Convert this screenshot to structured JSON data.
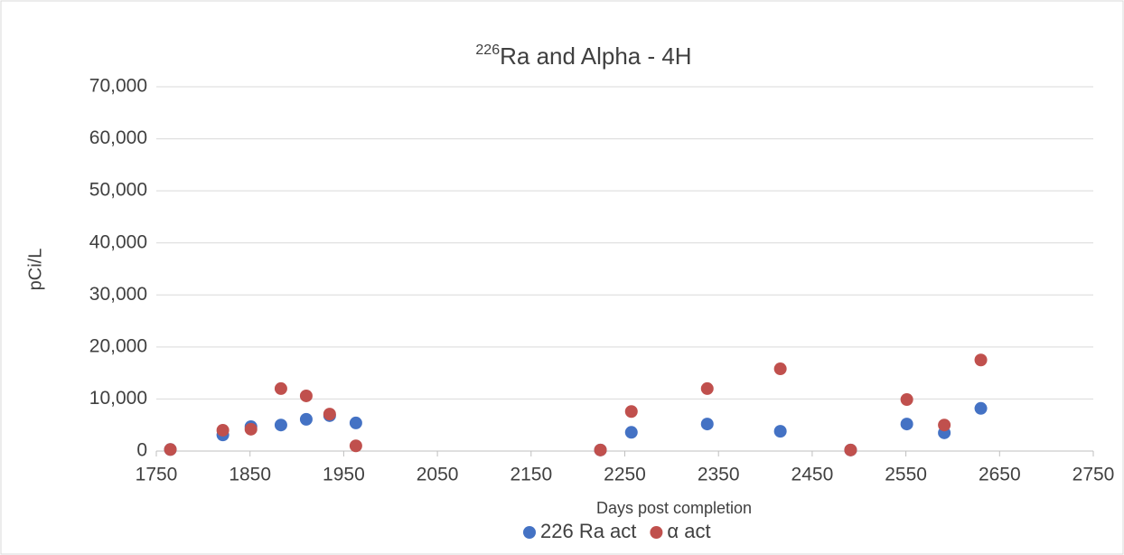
{
  "chart_data": {
    "type": "scatter",
    "title_superscript": "226",
    "title": "Ra and Alpha - 4H",
    "x_label": "Days post completion",
    "y_label": "pCi/L",
    "x": [
      1765,
      1821,
      1851,
      1883,
      1910,
      1935,
      1963,
      2224,
      2257,
      2338,
      2416,
      2491,
      2551,
      2591,
      2630
    ],
    "series": [
      {
        "name": "226 Ra act",
        "color": "#4472c4",
        "values": [
          300,
          3100,
          4700,
          5000,
          6100,
          6800,
          5400,
          200,
          3600,
          5200,
          3800,
          200,
          5200,
          3500,
          8200
        ]
      },
      {
        "name": "α act",
        "color": "#c0504d",
        "values": [
          300,
          4000,
          4200,
          12000,
          10600,
          7100,
          1000,
          200,
          7600,
          12000,
          15800,
          200,
          9900,
          5000,
          17500
        ]
      }
    ],
    "xlim": [
      1750,
      2750
    ],
    "xticks": [
      1750,
      1850,
      1950,
      2050,
      2150,
      2250,
      2350,
      2450,
      2550,
      2650,
      2750
    ],
    "ylim": [
      0,
      70000
    ],
    "yticks": [
      0,
      {
        "value": 10000,
        "label": "10,000"
      },
      {
        "value": 20000,
        "label": "20,000"
      },
      {
        "value": 30000,
        "label": "30,000"
      },
      {
        "value": 40000,
        "label": "40,000"
      },
      {
        "value": 50000,
        "label": "50,000"
      },
      {
        "value": 60000,
        "label": "60,000"
      },
      {
        "value": 70000,
        "label": "70,000"
      }
    ],
    "grid": true,
    "legend": "bottom"
  }
}
